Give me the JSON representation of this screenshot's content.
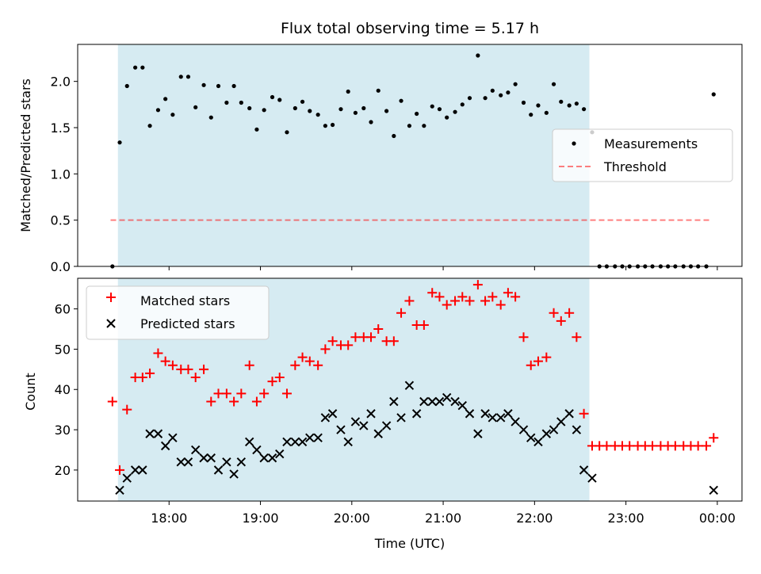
{
  "title": "Flux total observing time = 5.17 h",
  "colors": {
    "shade": "#add8e6",
    "measurement": "#000000",
    "threshold": "#ff0000",
    "matched": "#ff0000",
    "predicted": "#000000"
  },
  "x_ticks": [
    {
      "hour": 18,
      "label": "18:00"
    },
    {
      "hour": 19,
      "label": "19:00"
    },
    {
      "hour": 20,
      "label": "20:00"
    },
    {
      "hour": 21,
      "label": "21:00"
    },
    {
      "hour": 22,
      "label": "22:00"
    },
    {
      "hour": 23,
      "label": "23:00"
    },
    {
      "hour": 24,
      "label": "00:00"
    }
  ],
  "chart_data": [
    {
      "type": "scatter",
      "panel": "top",
      "ylabel": "Matched/Predicted stars",
      "ylim": [
        0,
        2.4
      ],
      "xlim": [
        17.0,
        24.27
      ],
      "y_ticks": [
        "0.0",
        "0.5",
        "1.0",
        "1.5",
        "2.0"
      ],
      "shaded_x_range": [
        17.44,
        22.6
      ],
      "legend": {
        "position": "center-right",
        "entries": [
          "Measurements",
          "Threshold"
        ]
      },
      "threshold": {
        "value": 0.5,
        "x_range": [
          17.36,
          23.93
        ]
      },
      "series": [
        {
          "name": "Measurements",
          "marker": "dot",
          "points": [
            [
              17.38,
              0.0
            ],
            [
              17.46,
              1.34
            ],
            [
              17.54,
              1.95
            ],
            [
              17.63,
              2.15
            ],
            [
              17.71,
              2.15
            ],
            [
              17.79,
              1.52
            ],
            [
              17.88,
              1.69
            ],
            [
              17.96,
              1.81
            ],
            [
              18.04,
              1.64
            ],
            [
              18.13,
              2.05
            ],
            [
              18.21,
              2.05
            ],
            [
              18.29,
              1.72
            ],
            [
              18.38,
              1.96
            ],
            [
              18.46,
              1.61
            ],
            [
              18.54,
              1.95
            ],
            [
              18.63,
              1.77
            ],
            [
              18.71,
              1.95
            ],
            [
              18.79,
              1.77
            ],
            [
              18.88,
              1.71
            ],
            [
              18.96,
              1.48
            ],
            [
              19.04,
              1.69
            ],
            [
              19.13,
              1.83
            ],
            [
              19.21,
              1.8
            ],
            [
              19.29,
              1.45
            ],
            [
              19.38,
              1.71
            ],
            [
              19.46,
              1.78
            ],
            [
              19.54,
              1.68
            ],
            [
              19.63,
              1.64
            ],
            [
              19.71,
              1.52
            ],
            [
              19.79,
              1.53
            ],
            [
              19.88,
              1.7
            ],
            [
              19.96,
              1.89
            ],
            [
              20.04,
              1.66
            ],
            [
              20.13,
              1.71
            ],
            [
              20.21,
              1.56
            ],
            [
              20.29,
              1.9
            ],
            [
              20.38,
              1.68
            ],
            [
              20.46,
              1.41
            ],
            [
              20.54,
              1.79
            ],
            [
              20.63,
              1.52
            ],
            [
              20.71,
              1.65
            ],
            [
              20.79,
              1.52
            ],
            [
              20.88,
              1.73
            ],
            [
              20.96,
              1.7
            ],
            [
              21.04,
              1.61
            ],
            [
              21.13,
              1.67
            ],
            [
              21.21,
              1.75
            ],
            [
              21.29,
              1.82
            ],
            [
              21.38,
              2.28
            ],
            [
              21.46,
              1.82
            ],
            [
              21.54,
              1.9
            ],
            [
              21.63,
              1.85
            ],
            [
              21.71,
              1.88
            ],
            [
              21.79,
              1.97
            ],
            [
              21.88,
              1.77
            ],
            [
              21.96,
              1.64
            ],
            [
              22.04,
              1.74
            ],
            [
              22.13,
              1.66
            ],
            [
              22.21,
              1.97
            ],
            [
              22.29,
              1.78
            ],
            [
              22.38,
              1.74
            ],
            [
              22.46,
              1.76
            ],
            [
              22.54,
              1.7
            ],
            [
              22.63,
              1.45
            ],
            [
              22.71,
              0.0
            ],
            [
              22.79,
              0.0
            ],
            [
              22.88,
              0.0
            ],
            [
              22.96,
              0.0
            ],
            [
              23.04,
              0.0
            ],
            [
              23.13,
              0.0
            ],
            [
              23.21,
              0.0
            ],
            [
              23.29,
              0.0
            ],
            [
              23.38,
              0.0
            ],
            [
              23.46,
              0.0
            ],
            [
              23.54,
              0.0
            ],
            [
              23.63,
              0.0
            ],
            [
              23.71,
              0.0
            ],
            [
              23.79,
              0.0
            ],
            [
              23.88,
              0.0
            ],
            [
              23.96,
              1.86
            ]
          ]
        }
      ]
    },
    {
      "type": "scatter",
      "panel": "bottom",
      "xlabel": "Time (UTC)",
      "ylabel": "Count",
      "ylim": [
        12.3,
        67.6
      ],
      "xlim": [
        17.0,
        24.27
      ],
      "y_ticks": [
        "20",
        "30",
        "40",
        "50",
        "60"
      ],
      "shaded_x_range": [
        17.44,
        22.6
      ],
      "legend": {
        "position": "top-left",
        "entries": [
          "Matched stars",
          "Predicted stars"
        ]
      },
      "series": [
        {
          "name": "Matched stars",
          "marker": "plus",
          "points": [
            [
              17.38,
              37
            ],
            [
              17.46,
              20
            ],
            [
              17.54,
              35
            ],
            [
              17.63,
              43
            ],
            [
              17.71,
              43
            ],
            [
              17.79,
              44
            ],
            [
              17.88,
              49
            ],
            [
              17.96,
              47
            ],
            [
              18.04,
              46
            ],
            [
              18.13,
              45
            ],
            [
              18.21,
              45
            ],
            [
              18.29,
              43
            ],
            [
              18.38,
              45
            ],
            [
              18.46,
              37
            ],
            [
              18.54,
              39
            ],
            [
              18.63,
              39
            ],
            [
              18.71,
              37
            ],
            [
              18.79,
              39
            ],
            [
              18.88,
              46
            ],
            [
              18.96,
              37
            ],
            [
              19.04,
              39
            ],
            [
              19.13,
              42
            ],
            [
              19.21,
              43
            ],
            [
              19.29,
              39
            ],
            [
              19.38,
              46
            ],
            [
              19.46,
              48
            ],
            [
              19.54,
              47
            ],
            [
              19.63,
              46
            ],
            [
              19.71,
              50
            ],
            [
              19.79,
              52
            ],
            [
              19.88,
              51
            ],
            [
              19.96,
              51
            ],
            [
              20.04,
              53
            ],
            [
              20.13,
              53
            ],
            [
              20.21,
              53
            ],
            [
              20.29,
              55
            ],
            [
              20.38,
              52
            ],
            [
              20.46,
              52
            ],
            [
              20.54,
              59
            ],
            [
              20.63,
              62
            ],
            [
              20.71,
              56
            ],
            [
              20.79,
              56
            ],
            [
              20.88,
              64
            ],
            [
              20.96,
              63
            ],
            [
              21.04,
              61
            ],
            [
              21.13,
              62
            ],
            [
              21.21,
              63
            ],
            [
              21.29,
              62
            ],
            [
              21.38,
              66
            ],
            [
              21.46,
              62
            ],
            [
              21.54,
              63
            ],
            [
              21.63,
              61
            ],
            [
              21.71,
              64
            ],
            [
              21.79,
              63
            ],
            [
              21.88,
              53
            ],
            [
              21.96,
              46
            ],
            [
              22.04,
              47
            ],
            [
              22.13,
              48
            ],
            [
              22.21,
              59
            ],
            [
              22.29,
              57
            ],
            [
              22.38,
              59
            ],
            [
              22.46,
              53
            ],
            [
              22.54,
              34
            ],
            [
              22.63,
              26
            ],
            [
              22.71,
              26
            ],
            [
              22.79,
              26
            ],
            [
              22.88,
              26
            ],
            [
              22.96,
              26
            ],
            [
              23.04,
              26
            ],
            [
              23.13,
              26
            ],
            [
              23.21,
              26
            ],
            [
              23.29,
              26
            ],
            [
              23.38,
              26
            ],
            [
              23.46,
              26
            ],
            [
              23.54,
              26
            ],
            [
              23.63,
              26
            ],
            [
              23.71,
              26
            ],
            [
              23.79,
              26
            ],
            [
              23.88,
              26
            ],
            [
              23.96,
              28
            ]
          ]
        },
        {
          "name": "Predicted stars",
          "marker": "x",
          "points": [
            [
              17.46,
              15
            ],
            [
              17.54,
              18
            ],
            [
              17.63,
              20
            ],
            [
              17.71,
              20
            ],
            [
              17.79,
              29
            ],
            [
              17.88,
              29
            ],
            [
              17.96,
              26
            ],
            [
              18.04,
              28
            ],
            [
              18.13,
              22
            ],
            [
              18.21,
              22
            ],
            [
              18.29,
              25
            ],
            [
              18.38,
              23
            ],
            [
              18.46,
              23
            ],
            [
              18.54,
              20
            ],
            [
              18.63,
              22
            ],
            [
              18.71,
              19
            ],
            [
              18.79,
              22
            ],
            [
              18.88,
              27
            ],
            [
              18.96,
              25
            ],
            [
              19.04,
              23
            ],
            [
              19.13,
              23
            ],
            [
              19.21,
              24
            ],
            [
              19.29,
              27
            ],
            [
              19.38,
              27
            ],
            [
              19.46,
              27
            ],
            [
              19.54,
              28
            ],
            [
              19.63,
              28
            ],
            [
              19.71,
              33
            ],
            [
              19.79,
              34
            ],
            [
              19.88,
              30
            ],
            [
              19.96,
              27
            ],
            [
              20.04,
              32
            ],
            [
              20.13,
              31
            ],
            [
              20.21,
              34
            ],
            [
              20.29,
              29
            ],
            [
              20.38,
              31
            ],
            [
              20.46,
              37
            ],
            [
              20.54,
              33
            ],
            [
              20.63,
              41
            ],
            [
              20.71,
              34
            ],
            [
              20.79,
              37
            ],
            [
              20.88,
              37
            ],
            [
              20.96,
              37
            ],
            [
              21.04,
              38
            ],
            [
              21.13,
              37
            ],
            [
              21.21,
              36
            ],
            [
              21.29,
              34
            ],
            [
              21.38,
              29
            ],
            [
              21.46,
              34
            ],
            [
              21.54,
              33
            ],
            [
              21.63,
              33
            ],
            [
              21.71,
              34
            ],
            [
              21.79,
              32
            ],
            [
              21.88,
              30
            ],
            [
              21.96,
              28
            ],
            [
              22.04,
              27
            ],
            [
              22.13,
              29
            ],
            [
              22.21,
              30
            ],
            [
              22.29,
              32
            ],
            [
              22.38,
              34
            ],
            [
              22.46,
              30
            ],
            [
              22.54,
              20
            ],
            [
              22.63,
              18
            ],
            [
              23.96,
              15
            ]
          ]
        }
      ]
    }
  ]
}
